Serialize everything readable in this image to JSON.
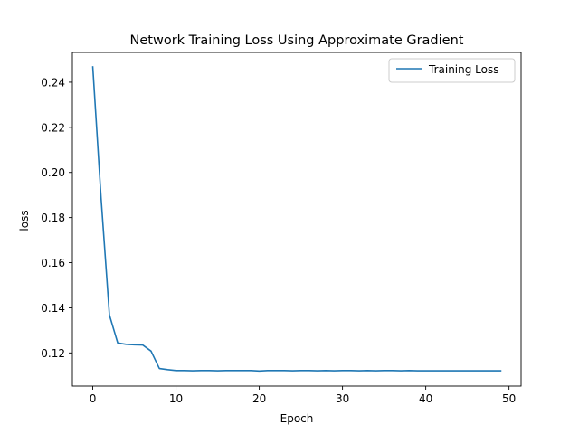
{
  "chart_data": {
    "type": "line",
    "title": "Network Training Loss Using Approximate Gradient",
    "xlabel": "Epoch",
    "ylabel": "loss",
    "xlim": [
      -2.45,
      51.45
    ],
    "ylim": [
      0.1053,
      0.2532
    ],
    "xticks": [
      0,
      10,
      20,
      30,
      40,
      50
    ],
    "yticks": [
      0.12,
      0.14,
      0.16,
      0.18,
      0.2,
      0.22,
      0.24
    ],
    "xtick_labels": [
      "0",
      "10",
      "20",
      "30",
      "40",
      "50"
    ],
    "ytick_labels": [
      "0.12",
      "0.14",
      "0.16",
      "0.18",
      "0.20",
      "0.22",
      "0.24"
    ],
    "grid": false,
    "legend_position": "top-right",
    "series": [
      {
        "name": "Training Loss",
        "color": "#1f77b4",
        "x": [
          0,
          1,
          2,
          3,
          4,
          5,
          6,
          7,
          8,
          9,
          10,
          11,
          12,
          13,
          14,
          15,
          16,
          17,
          18,
          19,
          20,
          21,
          22,
          23,
          24,
          25,
          26,
          27,
          28,
          29,
          30,
          31,
          32,
          33,
          34,
          35,
          36,
          37,
          38,
          39,
          40,
          41,
          42,
          43,
          44,
          45,
          46,
          47,
          48,
          49
        ],
        "values": [
          0.2468,
          0.1885,
          0.1368,
          0.1244,
          0.1238,
          0.1236,
          0.1235,
          0.1208,
          0.1131,
          0.1126,
          0.1122,
          0.1122,
          0.1121,
          0.1122,
          0.1122,
          0.1121,
          0.1122,
          0.1122,
          0.1122,
          0.1122,
          0.112,
          0.1122,
          0.1122,
          0.1122,
          0.1121,
          0.1122,
          0.1122,
          0.1121,
          0.1122,
          0.1121,
          0.1122,
          0.1122,
          0.1121,
          0.1122,
          0.1121,
          0.1122,
          0.1122,
          0.1121,
          0.1122,
          0.1121,
          0.1121,
          0.1121,
          0.1121,
          0.1121,
          0.1121,
          0.1121,
          0.1121,
          0.1121,
          0.1121,
          0.1121
        ]
      }
    ]
  }
}
